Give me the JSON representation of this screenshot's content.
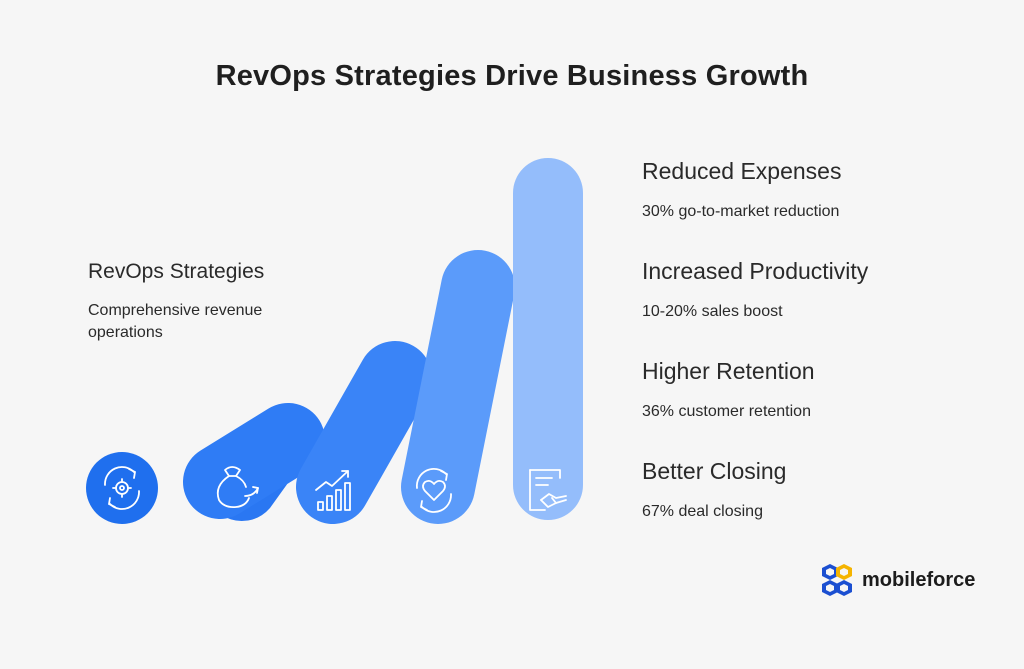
{
  "title": "RevOps Strategies Drive Business Growth",
  "left": {
    "heading": "RevOps Strategies",
    "description": "Comprehensive revenue operations"
  },
  "benefits": [
    {
      "title": "Reduced Expenses",
      "desc": "30% go-to-market reduction"
    },
    {
      "title": "Increased Productivity",
      "desc": "10-20% sales boost"
    },
    {
      "title": "Higher Retention",
      "desc": "36% customer retention"
    },
    {
      "title": "Better Closing",
      "desc": "67% deal closing"
    }
  ],
  "icons": [
    "gear-cycle-icon",
    "money-bag-icon",
    "growth-chart-icon",
    "heart-cycle-icon",
    "contract-handshake-icon"
  ],
  "colors": {
    "pill1": "#1f6fee",
    "pill2": "#2f7cf5",
    "pill3": "#3e87fa",
    "pill4": "#6aa6fb",
    "pill5": "#9ac1fb",
    "icon_stroke": "#ffffff"
  },
  "logo": {
    "text": "mobileforce",
    "colors": [
      "#1b4fd1",
      "#f5b400"
    ]
  }
}
